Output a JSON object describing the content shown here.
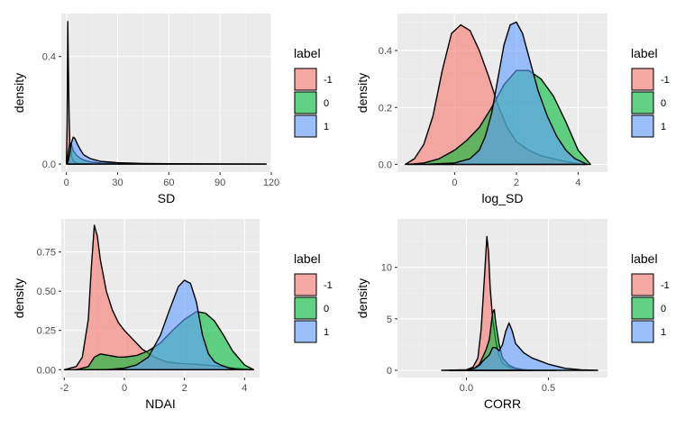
{
  "colors": {
    "-1": "#F8766D",
    "0": "#00BA38",
    "1": "#619CFF"
  },
  "fill_alpha": 0.6,
  "legend": {
    "title": "label",
    "entries": [
      "-1",
      "0",
      "1"
    ]
  },
  "chart_data": [
    {
      "type": "area",
      "xlabel": "SD",
      "ylabel": "density",
      "xlim": [
        -3,
        120
      ],
      "ylim": [
        -0.03,
        0.56
      ],
      "xticks": [
        0,
        30,
        60,
        90,
        120
      ],
      "xtick_labels": [
        "0",
        "30",
        "60",
        "90",
        "120"
      ],
      "yticks": [
        0.0,
        0.4
      ],
      "ytick_labels": [
        "0.0",
        "0.4"
      ],
      "grid": true,
      "series": [
        {
          "name": "-1",
          "x": [
            0,
            0.4,
            0.8,
            1.2,
            1.6,
            2,
            3,
            4,
            5,
            7,
            10,
            14
          ],
          "y": [
            0,
            0.15,
            0.53,
            0.33,
            0.17,
            0.08,
            0.03,
            0.012,
            0.006,
            0.002,
            0.001,
            0
          ]
        },
        {
          "name": "0",
          "x": [
            0.5,
            1,
            2,
            3,
            4,
            6,
            8,
            10,
            14,
            20,
            30,
            45,
            60,
            80,
            100,
            117
          ],
          "y": [
            0,
            0.04,
            0.08,
            0.07,
            0.05,
            0.032,
            0.022,
            0.015,
            0.008,
            0.004,
            0.002,
            0.001,
            0.0005,
            0.0002,
            0.0001,
            0
          ]
        },
        {
          "name": "1",
          "x": [
            0.5,
            1,
            2,
            3,
            4,
            5,
            6,
            8,
            10,
            14,
            20,
            30,
            45,
            60,
            80,
            100,
            117
          ],
          "y": [
            0,
            0.01,
            0.04,
            0.08,
            0.1,
            0.095,
            0.08,
            0.055,
            0.035,
            0.02,
            0.01,
            0.005,
            0.002,
            0.001,
            0.0005,
            0.0002,
            0
          ]
        }
      ]
    },
    {
      "type": "area",
      "xlabel": "log_SD",
      "ylabel": "density",
      "xlim": [
        -1.85,
        4.95
      ],
      "ylim": [
        -0.027,
        0.53
      ],
      "xticks": [
        0,
        2,
        4
      ],
      "xtick_labels": [
        "0",
        "2",
        "4"
      ],
      "yticks": [
        0.0,
        0.2,
        0.4
      ],
      "ytick_labels": [
        "0.0",
        "0.2",
        "0.4"
      ],
      "grid": true,
      "series": [
        {
          "name": "-1",
          "x": [
            -1.6,
            -1.3,
            -1.0,
            -0.7,
            -0.4,
            -0.1,
            0.2,
            0.5,
            0.8,
            1.1,
            1.4,
            1.7,
            2.0,
            2.4,
            2.8,
            3.2,
            3.6,
            4.0,
            4.3
          ],
          "y": [
            0,
            0.02,
            0.07,
            0.17,
            0.33,
            0.46,
            0.49,
            0.47,
            0.4,
            0.31,
            0.21,
            0.13,
            0.08,
            0.05,
            0.03,
            0.02,
            0.01,
            0.003,
            0
          ]
        },
        {
          "name": "0",
          "x": [
            -1.5,
            -1.0,
            -0.5,
            0,
            0.4,
            0.8,
            1.2,
            1.6,
            2.0,
            2.4,
            2.8,
            3.2,
            3.6,
            4.0,
            4.4
          ],
          "y": [
            0,
            0.005,
            0.02,
            0.05,
            0.085,
            0.13,
            0.2,
            0.28,
            0.33,
            0.33,
            0.3,
            0.24,
            0.15,
            0.05,
            0
          ]
        },
        {
          "name": "1",
          "x": [
            -1.0,
            0,
            0.5,
            0.8,
            1.0,
            1.2,
            1.4,
            1.6,
            1.8,
            2.0,
            2.2,
            2.4,
            2.7,
            3.0,
            3.3,
            3.6,
            3.9,
            4.3
          ],
          "y": [
            0,
            0.005,
            0.02,
            0.05,
            0.1,
            0.18,
            0.3,
            0.42,
            0.49,
            0.5,
            0.46,
            0.38,
            0.26,
            0.17,
            0.1,
            0.05,
            0.02,
            0
          ]
        }
      ]
    },
    {
      "type": "area",
      "xlabel": "NDAI",
      "ylabel": "density",
      "xlim": [
        -2.1,
        4.5
      ],
      "ylim": [
        -0.05,
        0.96
      ],
      "xticks": [
        -2,
        0,
        2,
        4
      ],
      "xtick_labels": [
        "-2",
        "0",
        "2",
        "4"
      ],
      "yticks": [
        0.0,
        0.25,
        0.5,
        0.75
      ],
      "ytick_labels": [
        "0.00",
        "0.25",
        "0.50",
        "0.75"
      ],
      "grid": true,
      "series": [
        {
          "name": "-1",
          "x": [
            -2.0,
            -1.6,
            -1.4,
            -1.2,
            -1.1,
            -1.0,
            -0.9,
            -0.8,
            -0.6,
            -0.4,
            -0.2,
            0,
            0.3,
            0.6,
            1.0,
            1.4,
            1.8,
            2.4,
            3.0,
            3.6,
            4.3
          ],
          "y": [
            0,
            0.02,
            0.08,
            0.32,
            0.65,
            0.92,
            0.85,
            0.7,
            0.5,
            0.38,
            0.3,
            0.25,
            0.19,
            0.13,
            0.08,
            0.05,
            0.04,
            0.035,
            0.025,
            0.01,
            0
          ]
        },
        {
          "name": "0",
          "x": [
            -1.6,
            -1.2,
            -1.0,
            -0.8,
            -0.5,
            -0.2,
            0,
            0.4,
            0.8,
            1.2,
            1.6,
            2.0,
            2.4,
            2.7,
            3.0,
            3.3,
            3.6,
            4.0,
            4.3
          ],
          "y": [
            0,
            0.02,
            0.08,
            0.1,
            0.09,
            0.08,
            0.08,
            0.09,
            0.12,
            0.17,
            0.25,
            0.32,
            0.37,
            0.36,
            0.31,
            0.22,
            0.12,
            0.03,
            0
          ]
        },
        {
          "name": "1",
          "x": [
            -0.6,
            0,
            0.4,
            0.8,
            1.2,
            1.5,
            1.8,
            2.0,
            2.2,
            2.4,
            2.6,
            2.8,
            3.0,
            3.2,
            3.5,
            3.8
          ],
          "y": [
            0,
            0.01,
            0.03,
            0.08,
            0.22,
            0.38,
            0.53,
            0.57,
            0.55,
            0.43,
            0.22,
            0.1,
            0.05,
            0.03,
            0.01,
            0
          ]
        }
      ]
    },
    {
      "type": "area",
      "xlabel": "CORR",
      "ylabel": "density",
      "xlim": [
        -0.42,
        0.86
      ],
      "ylim": [
        -0.7,
        14.7
      ],
      "xticks": [
        0.0,
        0.5
      ],
      "xtick_labels": [
        "0.0",
        "0.5"
      ],
      "yticks": [
        0,
        5,
        10
      ],
      "ytick_labels": [
        "0",
        "5",
        "10"
      ],
      "grid": true,
      "series": [
        {
          "name": "-1",
          "x": [
            -0.1,
            0.0,
            0.04,
            0.07,
            0.09,
            0.11,
            0.125,
            0.135,
            0.145,
            0.16,
            0.18,
            0.2,
            0.22,
            0.26,
            0.3,
            0.34,
            0.38,
            0.45,
            0.55
          ],
          "y": [
            0,
            0.05,
            0.3,
            1.2,
            4.0,
            9.0,
            13.0,
            11.5,
            8.0,
            5.0,
            2.8,
            1.4,
            0.7,
            0.3,
            0.12,
            0.05,
            0.02,
            0.005,
            0
          ]
        },
        {
          "name": "0",
          "x": [
            -0.1,
            0.0,
            0.05,
            0.08,
            0.1,
            0.12,
            0.14,
            0.16,
            0.17,
            0.18,
            0.2,
            0.22,
            0.26,
            0.3,
            0.35,
            0.4
          ],
          "y": [
            0,
            0.03,
            0.2,
            0.6,
            1.3,
            2.0,
            3.0,
            5.6,
            5.9,
            4.5,
            2.5,
            1.2,
            0.5,
            0.2,
            0.06,
            0
          ]
        },
        {
          "name": "1",
          "x": [
            -0.15,
            0.0,
            0.05,
            0.08,
            0.1,
            0.12,
            0.14,
            0.16,
            0.18,
            0.2,
            0.22,
            0.24,
            0.26,
            0.28,
            0.3,
            0.35,
            0.4,
            0.5,
            0.6,
            0.7,
            0.8
          ],
          "y": [
            0,
            0.05,
            0.2,
            0.5,
            0.9,
            1.2,
            1.5,
            2.2,
            2.2,
            1.9,
            2.5,
            3.8,
            4.6,
            3.8,
            2.6,
            1.7,
            1.2,
            0.6,
            0.2,
            0.05,
            0
          ]
        }
      ]
    }
  ]
}
